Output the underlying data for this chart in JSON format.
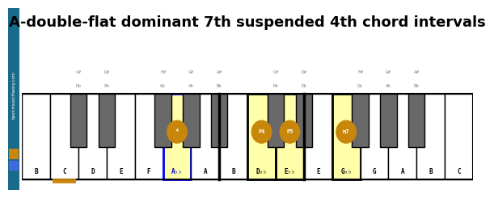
{
  "title": "A-double-flat dominant 7th suspended 4th chord intervals",
  "title_fontsize": 13,
  "white_key_labels": [
    "B",
    "C",
    "D",
    "E",
    "F",
    "A♭♭",
    "A",
    "B",
    "D♭♭",
    "E♭♭",
    "E",
    "G♭♭",
    "G",
    "A",
    "B",
    "C"
  ],
  "num_white_keys": 16,
  "black_key_positions": [
    1,
    2,
    4,
    5,
    6,
    8,
    9,
    11,
    12,
    13
  ],
  "black_key_labels_top": [
    [
      "C#",
      "Db"
    ],
    [
      "D#",
      "Eb"
    ],
    [
      "F#",
      "Gb"
    ],
    [
      "G#",
      "Ab"
    ],
    [
      "A#",
      "Bb"
    ],
    [
      "C#",
      "Db"
    ],
    [
      "D#",
      "Eb"
    ],
    [
      "F#",
      "Gb"
    ],
    [
      "G#",
      "Ab"
    ],
    [
      "A#",
      "Bb"
    ]
  ],
  "highlighted_white": [
    {
      "index": 5,
      "label": "A♭♭",
      "badge": "*",
      "badge_color": "#c8860a",
      "border_color": "#0000ff",
      "bg_color": "#ffffaa"
    },
    {
      "index": 8,
      "label": "D♭♭",
      "badge": "P4",
      "badge_color": "#c8860a",
      "border_color": "#000000",
      "bg_color": "#ffffaa"
    },
    {
      "index": 9,
      "label": "E♭♭",
      "badge": "P5",
      "badge_color": "#c8860a",
      "border_color": "#000000",
      "bg_color": "#ffffaa"
    },
    {
      "index": 11,
      "label": "G♭♭",
      "badge": "m7",
      "badge_color": "#c8860a",
      "border_color": "#000000",
      "bg_color": "#ffffaa"
    }
  ],
  "orange_underline_index": 1,
  "separator_after_white": [
    6,
    9
  ],
  "bg_color": "#ffffff",
  "white_key_color": "#ffffff",
  "black_key_color": "#696969",
  "side_bar_color": "#1a6b8a",
  "side_bar_text": "basicmusictheory.com",
  "orange_sq_color": "#c8860a",
  "blue_sq_color": "#4169e1"
}
